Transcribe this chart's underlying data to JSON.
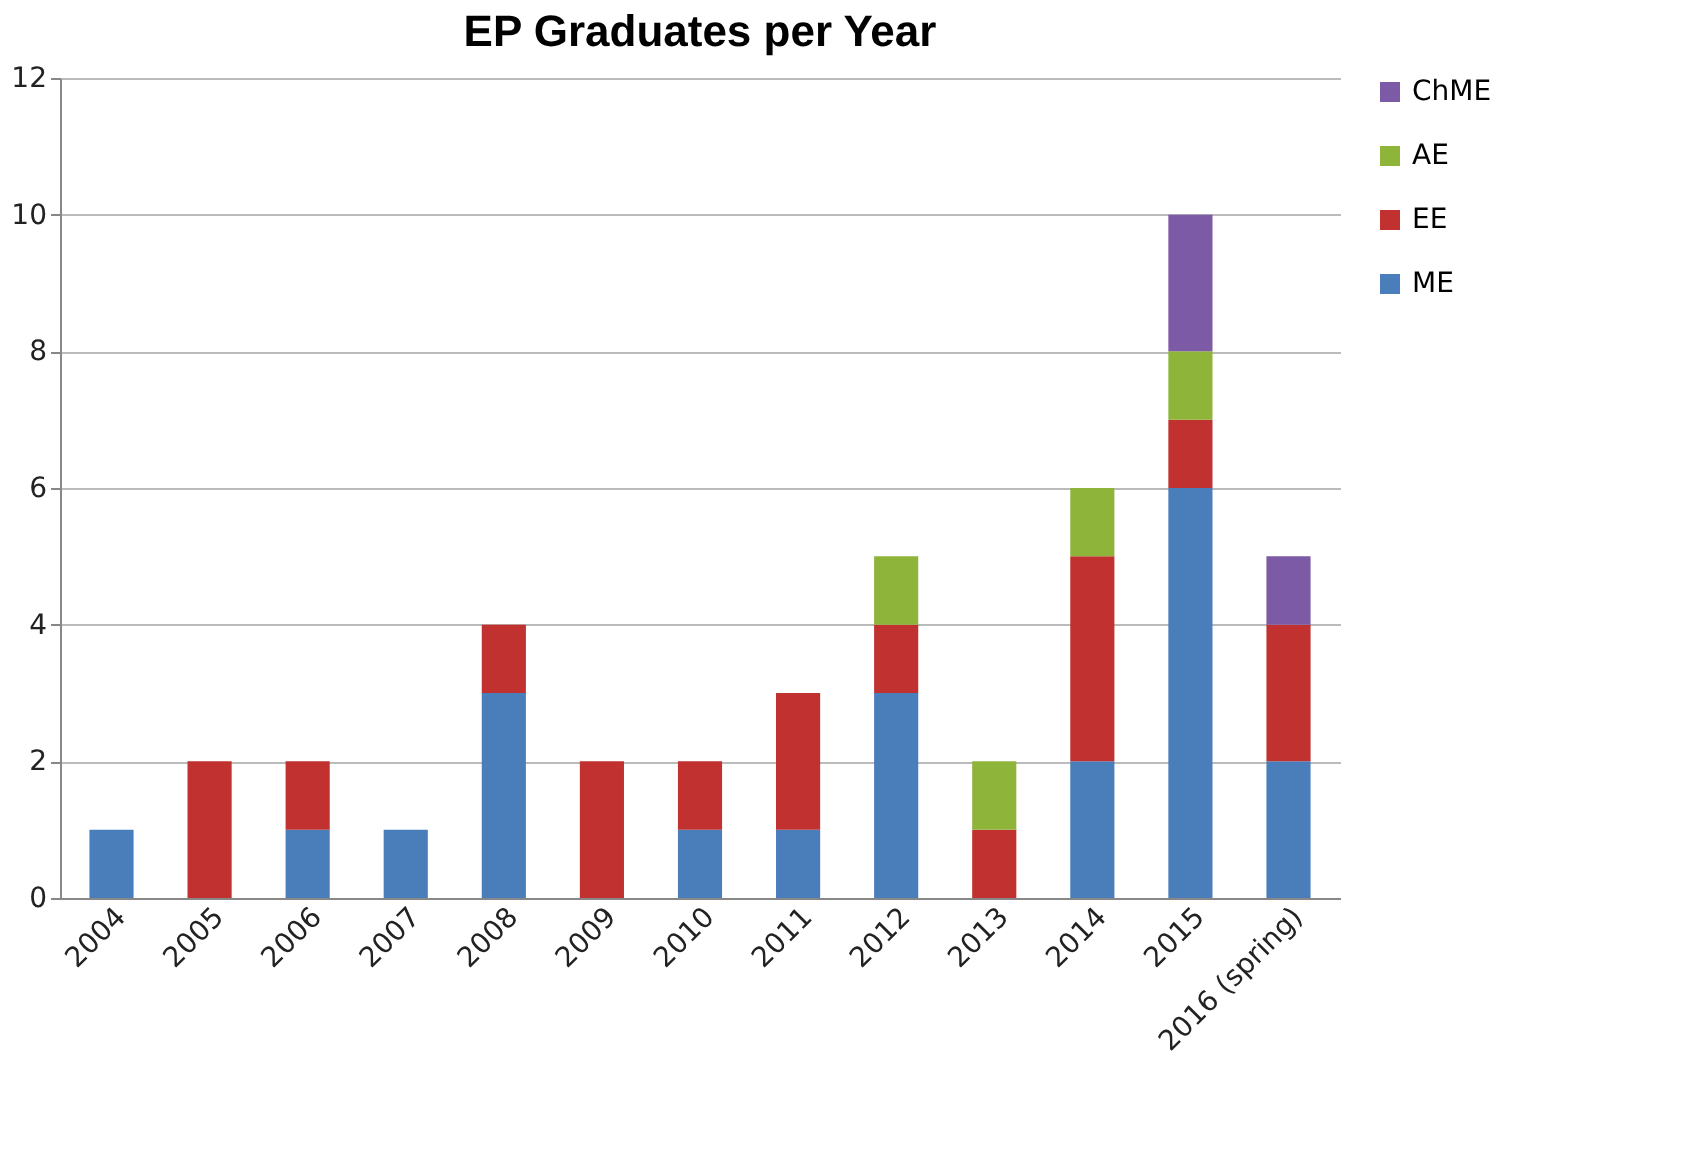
{
  "chart_data": {
    "type": "bar",
    "title": "EP Graduates per Year",
    "stacked": true,
    "categories": [
      "2004",
      "2005",
      "2006",
      "2007",
      "2008",
      "2009",
      "2010",
      "2011",
      "2012",
      "2013",
      "2014",
      "2015",
      "2016 (spring)"
    ],
    "series": [
      {
        "name": "ME",
        "color": "#4a7ebb",
        "values": [
          1,
          null,
          1,
          1,
          3,
          null,
          1,
          1,
          3,
          null,
          2,
          6,
          2
        ]
      },
      {
        "name": "EE",
        "color": "#c0312f",
        "values": [
          null,
          2,
          1,
          null,
          1,
          2,
          1,
          2,
          1,
          1,
          3,
          1,
          2
        ]
      },
      {
        "name": "AE",
        "color": "#8fb43a",
        "values": [
          null,
          null,
          null,
          null,
          null,
          null,
          null,
          null,
          1,
          1,
          1,
          1,
          null
        ]
      },
      {
        "name": "ChME",
        "color": "#7d5aa6",
        "values": [
          null,
          null,
          null,
          null,
          null,
          null,
          null,
          null,
          null,
          null,
          null,
          2,
          1
        ]
      }
    ],
    "ylim": [
      0,
      12
    ],
    "yticks": [
      0,
      2,
      4,
      6,
      8,
      10,
      12
    ],
    "grid": "y",
    "legend": "right"
  }
}
